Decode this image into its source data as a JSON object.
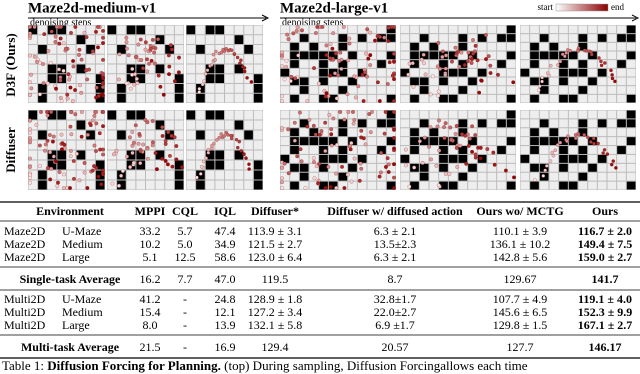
{
  "figure": {
    "panels": [
      {
        "title": "Maze2d-medium-v1",
        "axis_label": "denoising steps"
      },
      {
        "title": "Maze2d-large-v1",
        "axis_label": "denoising steps"
      }
    ],
    "colorbar": {
      "start": "start",
      "end": "end"
    },
    "row_labels": [
      "D3F (Ours)",
      "Diffuser"
    ]
  },
  "table": {
    "header": [
      "Environment",
      "MPPI",
      "CQL",
      "IQL",
      "Diffuser*",
      "Diffuser w/ diffused action",
      "Ours wo/ MCTG",
      "Ours"
    ],
    "sections": [
      {
        "rows": [
          [
            "Maze2D",
            "U-Maze",
            "33.2",
            "5.7",
            "47.4",
            "113.9 ± 3.1",
            "6.3 ± 2.1",
            "110.1 ± 3.9",
            "116.7 ± 2.0"
          ],
          [
            "Maze2D",
            "Medium",
            "10.2",
            "5.0",
            "34.9",
            "121.5 ± 2.7",
            "13.5±2.3",
            "136.1 ± 10.2",
            "149.4 ± 7.5"
          ],
          [
            "Maze2D",
            "Large",
            "5.1",
            "12.5",
            "58.6",
            "123.0 ± 6.4",
            "6.3 ± 2.1",
            "142.8 ± 5.6",
            "159.0 ± 2.7"
          ]
        ],
        "average": [
          "Single-task Average",
          "16.2",
          "7.7",
          "47.0",
          "119.5",
          "8.7",
          "129.67",
          "141.7"
        ]
      },
      {
        "rows": [
          [
            "Multi2D",
            "U-Maze",
            "41.2",
            "-",
            "24.8",
            "128.9 ± 1.8",
            "32.8±1.7",
            "107.7 ± 4.9",
            "119.1 ± 4.0"
          ],
          [
            "Multi2D",
            "Medium",
            "15.4",
            "-",
            "12.1",
            "127.2 ± 3.4",
            "22.0±2.7",
            "145.6 ± 6.5",
            "152.3 ± 9.9"
          ],
          [
            "Multi2D",
            "Large",
            "8.0",
            "-",
            "13.9",
            "132.1 ± 5.8",
            "6.9 ±1.7",
            "129.8 ± 1.5",
            "167.1 ± 2.7"
          ]
        ],
        "average": [
          "Multi-task Average",
          "21.5",
          "-",
          "16.9",
          "129.4",
          "20.57",
          "127.7",
          "146.17"
        ]
      }
    ]
  },
  "caption": {
    "label": "Table 1:",
    "title": "Diffusion Forcing for Planning.",
    "text": "(top) During sampling, Diffusion Forcingallows each time"
  }
}
